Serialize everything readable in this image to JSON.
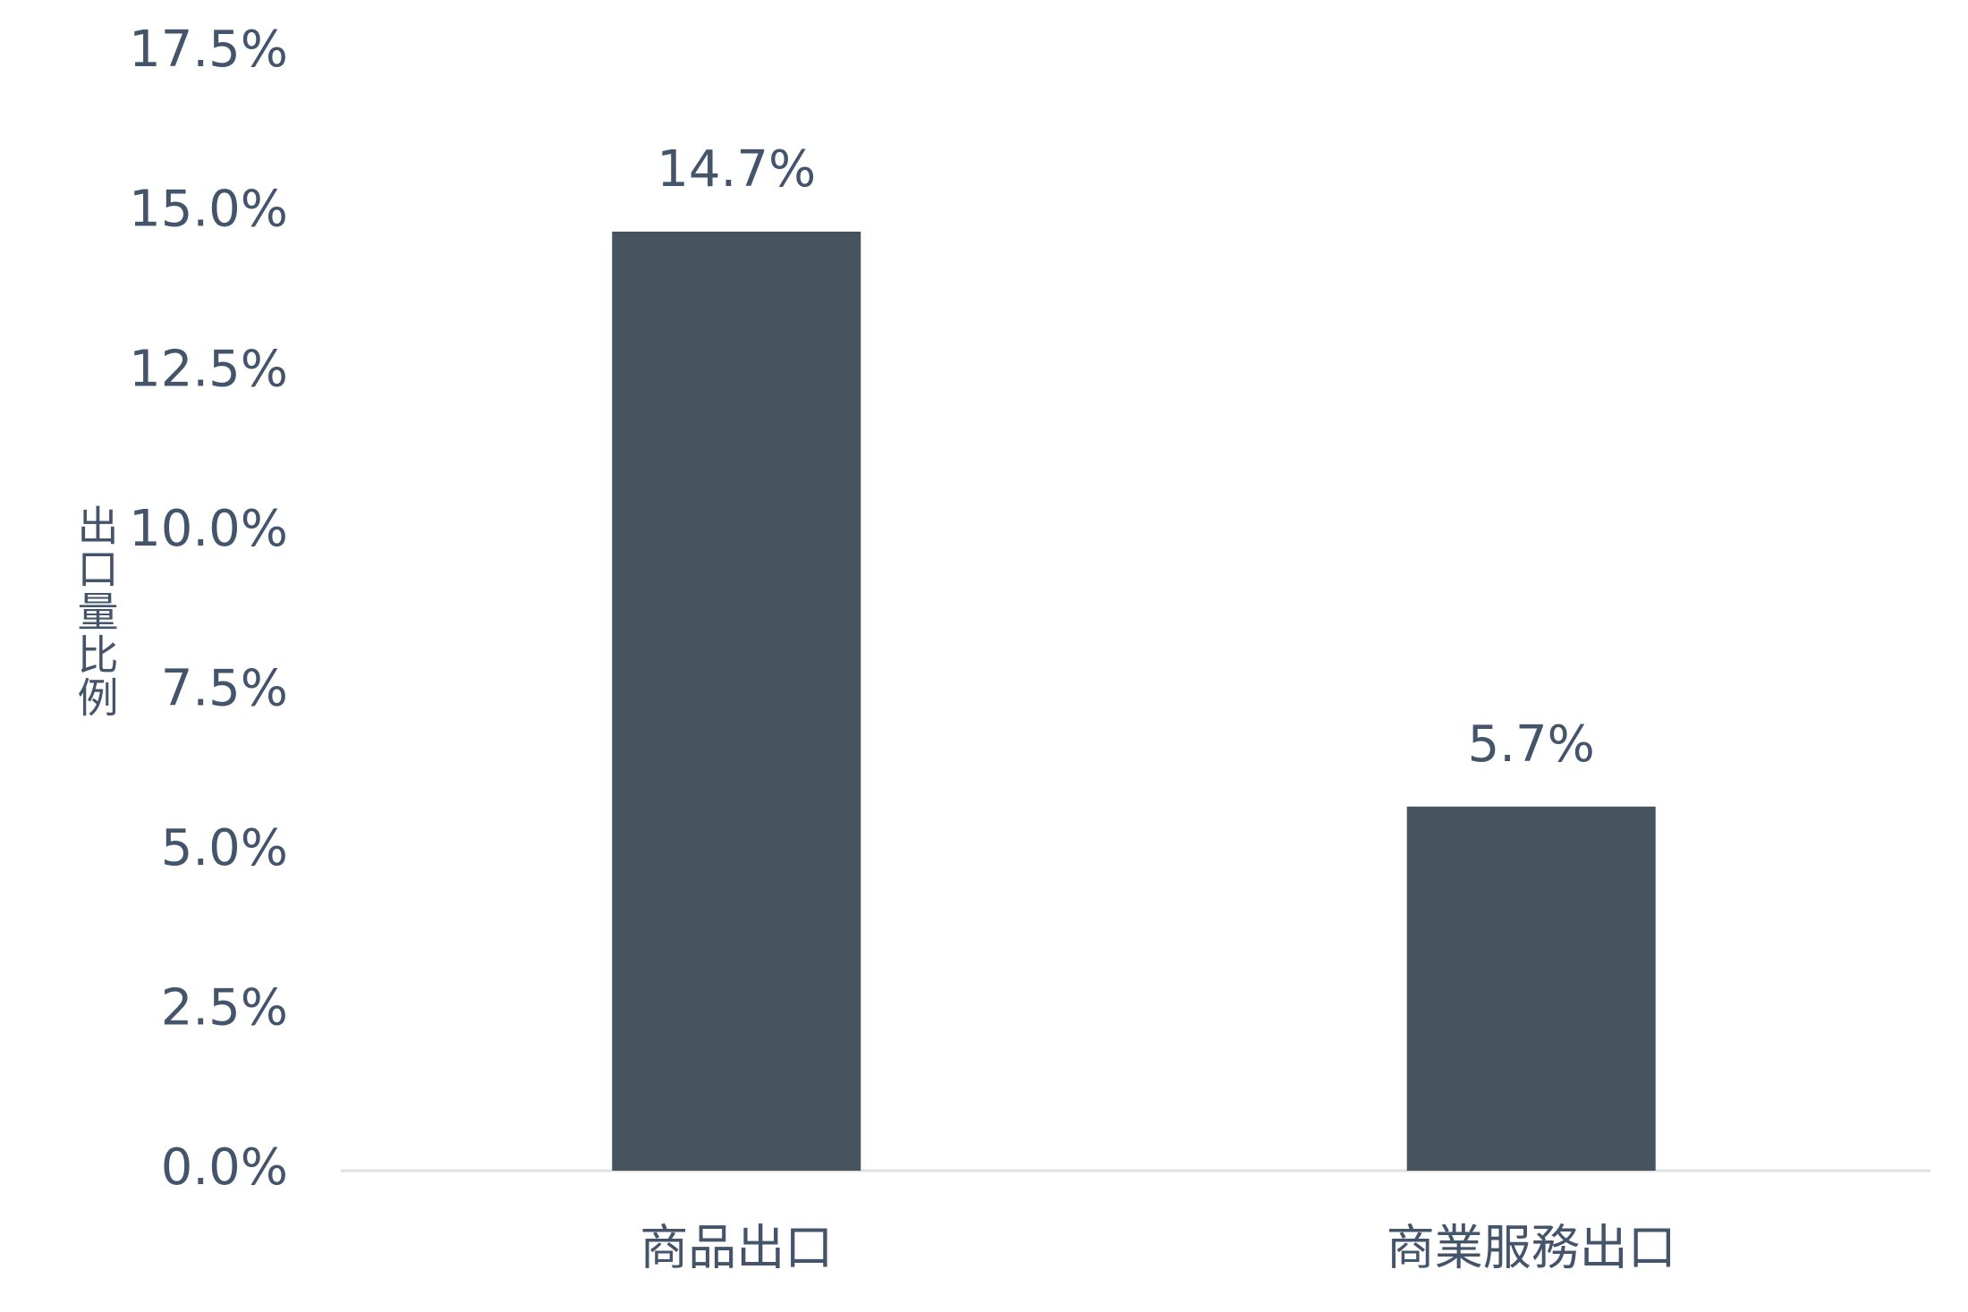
{
  "chart_data": {
    "type": "bar",
    "y_label": "出口量比例",
    "categories": [
      "商品出口",
      "商業服務出口"
    ],
    "values": [
      14.7,
      5.7
    ],
    "value_labels": [
      "14.7%",
      "5.7%"
    ],
    "color": "#45545e",
    "ylim": [
      0,
      17.5
    ],
    "yticks": [
      {
        "value": 0,
        "label": "0.0%"
      },
      {
        "value": 2.5,
        "label": "2.5%"
      },
      {
        "value": 5,
        "label": "5.0%"
      },
      {
        "value": 7.5,
        "label": "7.5%"
      },
      {
        "value": 10,
        "label": "10.0%"
      },
      {
        "value": 12.5,
        "label": "12.5%"
      },
      {
        "value": 15,
        "label": "15.0%"
      },
      {
        "value": 17.5,
        "label": "17.5%"
      }
    ],
    "grid": false
  }
}
